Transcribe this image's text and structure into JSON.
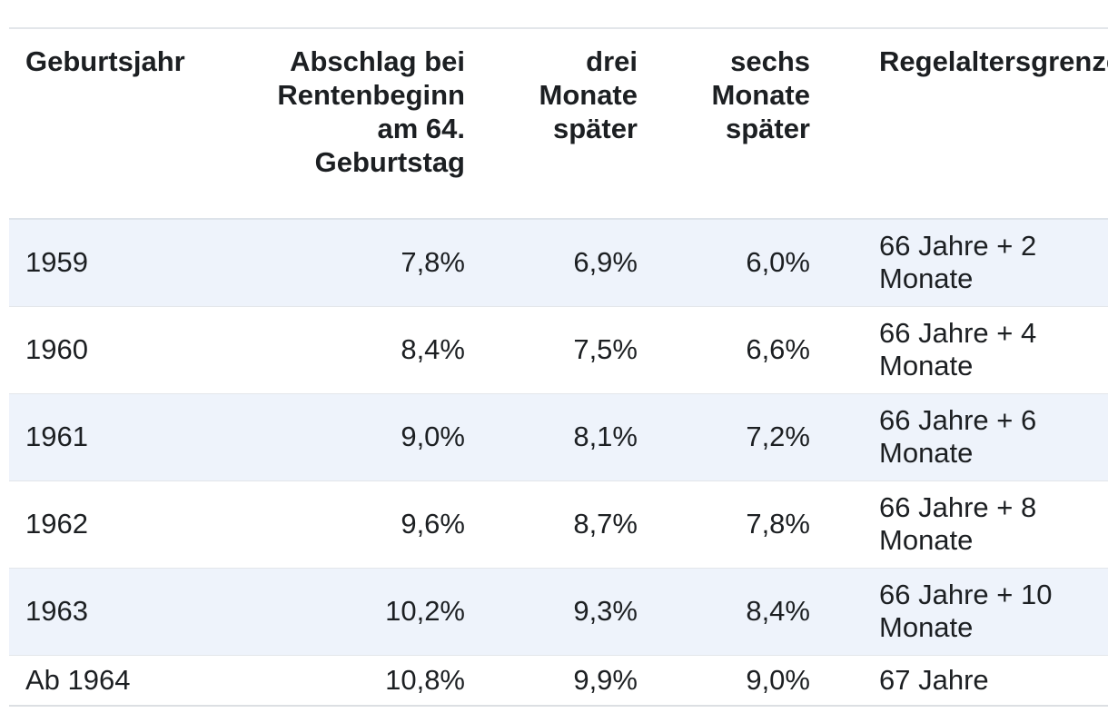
{
  "table": {
    "headers": [
      "Geburtsjahr",
      "Abschlag bei Rentenbeginn am 64. Geburtstag",
      "drei Monate später",
      "sechs Monate später",
      "Regelaltersgrenze"
    ],
    "rows": [
      [
        "1959",
        "7,8%",
        "6,9%",
        "6,0%",
        "66 Jahre + 2 Monate"
      ],
      [
        "1960",
        "8,4%",
        "7,5%",
        "6,6%",
        "66 Jahre + 4 Monate"
      ],
      [
        "1961",
        "9,0%",
        "8,1%",
        "7,2%",
        "66 Jahre + 6 Monate"
      ],
      [
        "1962",
        "9,6%",
        "8,7%",
        "7,8%",
        "66 Jahre + 8 Monate"
      ],
      [
        "1963",
        "10,2%",
        "9,3%",
        "8,4%",
        "66 Jahre + 10 Monate"
      ],
      [
        "Ab 1964",
        "10,8%",
        "9,9%",
        "9,0%",
        "67 Jahre"
      ]
    ]
  },
  "colors": {
    "row_shade": "#eef3fb",
    "border": "#e3e6ea",
    "text": "#1c1f22"
  }
}
